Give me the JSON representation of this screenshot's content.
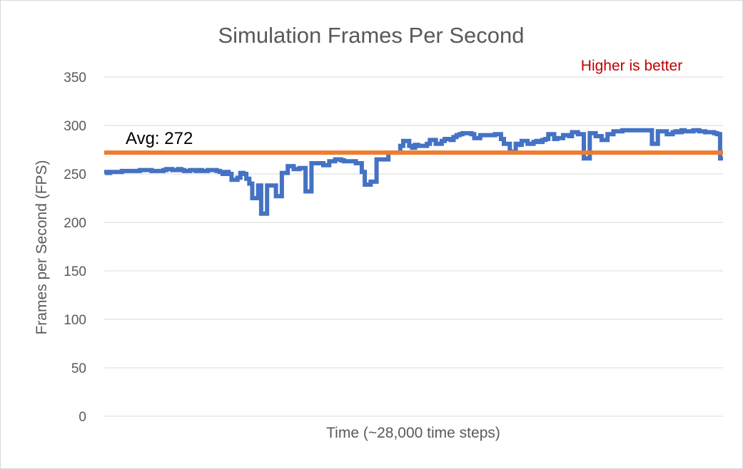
{
  "chart_data": {
    "type": "line",
    "title": "Simulation Frames Per Second",
    "xlabel": "Time (~28,000 time steps)",
    "ylabel": "Frames per Second (FPS)",
    "ylim": [
      0,
      350
    ],
    "yticks": [
      0,
      50,
      100,
      150,
      200,
      250,
      300,
      350
    ],
    "grid": true,
    "annotation": "Higher is better",
    "average": {
      "value": 272,
      "label": "Avg: 272"
    },
    "colors": {
      "series": "#4472c4",
      "average": "#ed7d31",
      "annotation": "#c00000"
    },
    "series": [
      {
        "values": [
          252,
          251,
          252,
          252,
          252,
          252,
          253,
          253,
          253,
          253,
          253,
          253,
          254,
          254,
          254,
          254,
          253,
          253,
          253,
          253,
          254,
          255,
          255,
          254,
          254,
          255,
          254,
          253,
          253,
          254,
          254,
          253,
          254,
          253,
          253,
          254,
          254,
          254,
          253,
          252,
          250,
          252,
          250,
          244,
          244,
          246,
          251,
          250,
          245,
          240,
          225,
          225,
          238,
          209,
          209,
          238,
          238,
          238,
          227,
          227,
          251,
          251,
          258,
          258,
          255,
          255,
          256,
          256,
          232,
          232,
          261,
          261,
          261,
          261,
          259,
          259,
          263,
          263,
          265,
          265,
          264,
          263,
          263,
          263,
          263,
          261,
          261,
          252,
          239,
          239,
          242,
          242,
          265,
          265,
          265,
          265,
          272,
          272,
          272,
          272,
          279,
          284,
          284,
          279,
          277,
          280,
          279,
          279,
          279,
          281,
          285,
          285,
          281,
          281,
          284,
          286,
          286,
          285,
          288,
          290,
          291,
          292,
          292,
          292,
          291,
          287,
          287,
          290,
          290,
          290,
          290,
          290,
          291,
          291,
          286,
          281,
          281,
          273,
          273,
          281,
          280,
          284,
          284,
          281,
          281,
          283,
          284,
          283,
          285,
          286,
          291,
          291,
          286,
          287,
          287,
          290,
          290,
          289,
          293,
          293,
          291,
          291,
          266,
          266,
          292,
          292,
          289,
          289,
          285,
          285,
          291,
          291,
          294,
          294,
          294,
          295,
          295,
          295,
          295,
          295,
          295,
          295,
          295,
          295,
          295,
          281,
          281,
          294,
          294,
          294,
          291,
          291,
          293,
          294,
          293,
          295,
          294,
          294,
          294,
          295,
          295,
          294,
          294,
          293,
          293,
          293,
          292,
          291,
          266
        ]
      }
    ]
  }
}
